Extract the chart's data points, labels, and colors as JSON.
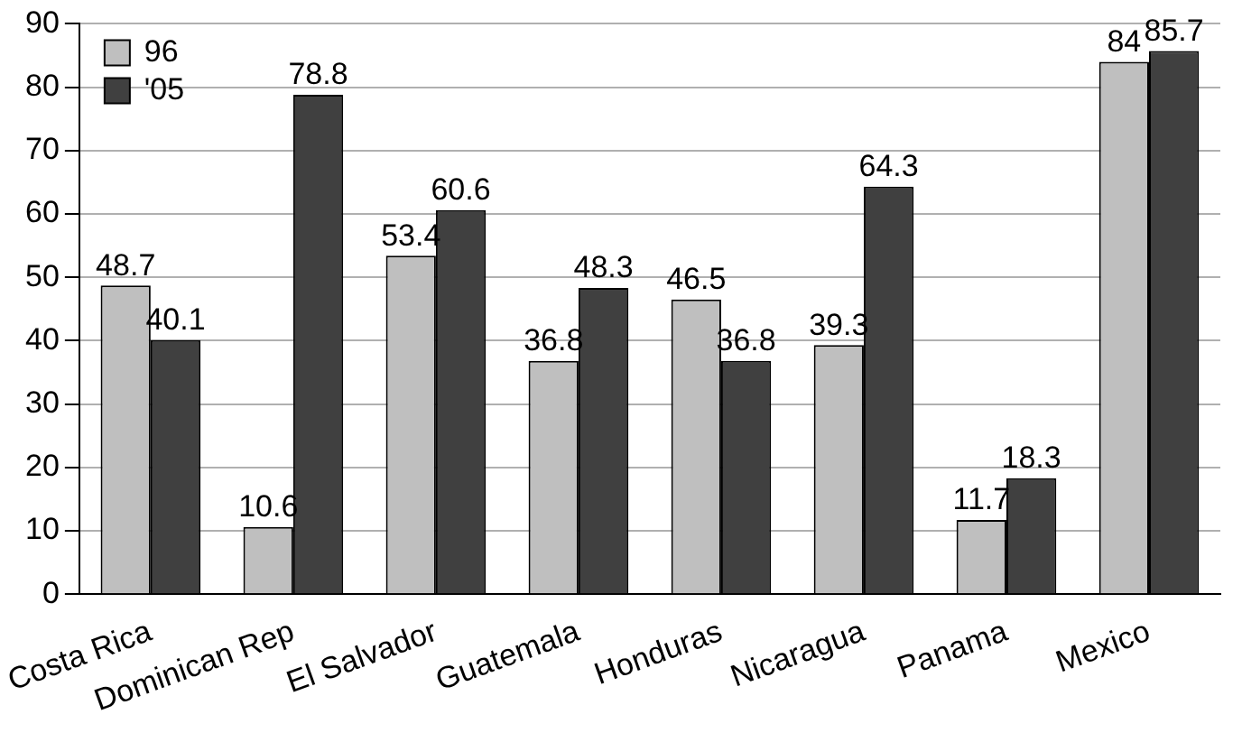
{
  "chart_data": {
    "type": "bar",
    "categories": [
      "Costa Rica",
      "Dominican Rep",
      "El Salvador",
      "Guatemala",
      "Honduras",
      "Nicaragua",
      "Panama",
      "Mexico"
    ],
    "series": [
      {
        "name": "96",
        "color": "#bfbfbf",
        "values": [
          48.7,
          10.6,
          53.4,
          36.8,
          46.5,
          39.3,
          11.7,
          84
        ]
      },
      {
        "name": "'05",
        "color": "#404040",
        "values": [
          40.1,
          78.8,
          60.6,
          48.3,
          36.8,
          64.3,
          18.3,
          85.7
        ]
      }
    ],
    "ylim": [
      0,
      90
    ],
    "yticks": [
      0,
      10,
      20,
      30,
      40,
      50,
      60,
      70,
      80,
      90
    ],
    "grid": "y",
    "legend": "top left",
    "data_labels": true
  }
}
